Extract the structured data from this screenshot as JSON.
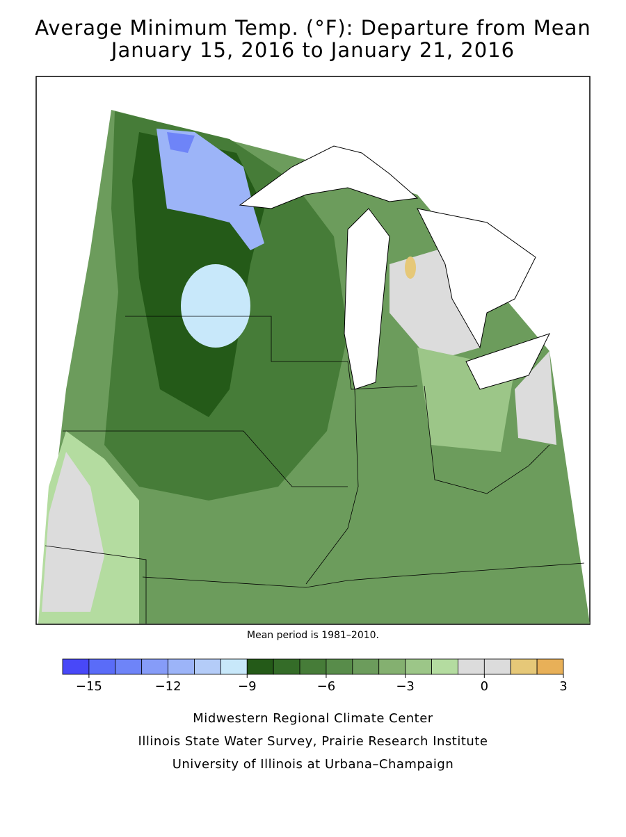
{
  "header": {
    "title": "Average Minimum Temp. (°F): Departure from Mean",
    "subtitle": "January 15, 2016 to January 21, 2016"
  },
  "note": "Mean period is 1981–2010.",
  "colorbar": {
    "bins": [
      -16,
      -15,
      -14,
      -13,
      -12,
      -11,
      -10,
      -9,
      -8,
      -7,
      -6,
      -5,
      -4,
      -3,
      -2,
      -1,
      0,
      1,
      2,
      3
    ],
    "colors": [
      "#4848f8",
      "#5a6cf8",
      "#6e84f8",
      "#869cf8",
      "#9cb4f8",
      "#b4ccf8",
      "#c8e8fa",
      "#245a18",
      "#346c28",
      "#467c38",
      "#588c4a",
      "#6c9c5c",
      "#84b070",
      "#9cc688",
      "#b4dca0",
      "#dcdcdc",
      "#dcdcdc",
      "#e6c878",
      "#e8b058"
    ],
    "ticks": [
      {
        "value": -15,
        "label": "−15"
      },
      {
        "value": -12,
        "label": "−12"
      },
      {
        "value": -9,
        "label": "−9"
      },
      {
        "value": -6,
        "label": "−6"
      },
      {
        "value": -3,
        "label": "−3"
      },
      0,
      3
    ]
  },
  "credits": [
    "Midwestern Regional Climate Center",
    "Illinois State Water Survey, Prairie Research Institute",
    "University of Illinois at Urbana–Champaign"
  ]
}
